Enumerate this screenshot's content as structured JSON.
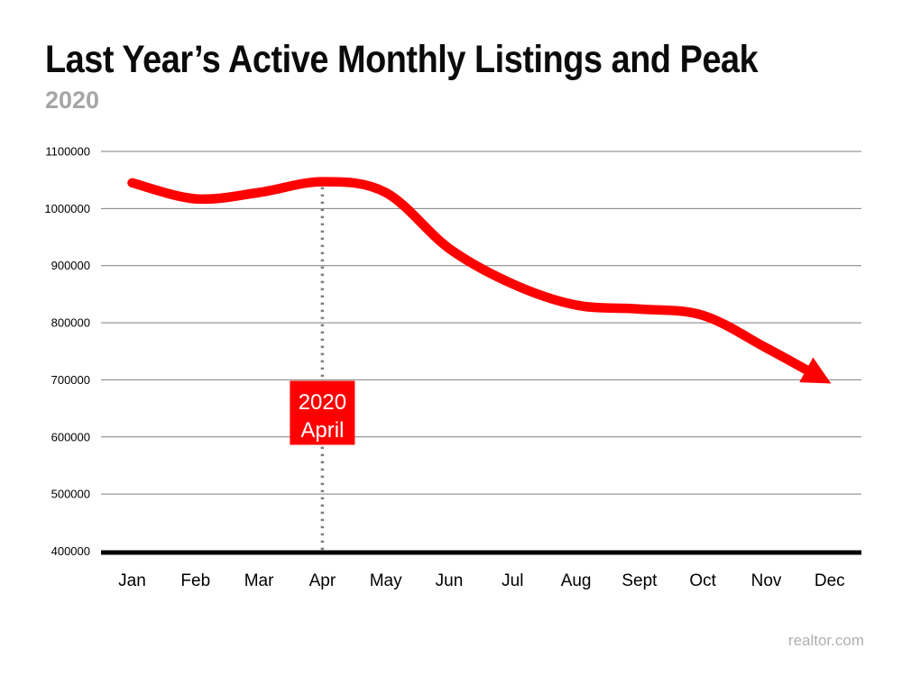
{
  "header": {
    "title": "Last Year’s Active Monthly Listings and Peak",
    "subtitle": "2020"
  },
  "watermark": "realtor.com",
  "chart_data": {
    "type": "line",
    "title": "Last Year’s Active Monthly Listings and Peak",
    "subtitle": "2020",
    "categories": [
      "Jan",
      "Feb",
      "Mar",
      "Apr",
      "May",
      "Jun",
      "Jul",
      "Aug",
      "Sept",
      "Oct",
      "Nov",
      "Dec"
    ],
    "series": [
      {
        "name": "Active Monthly Listings",
        "values": [
          1045000,
          1017000,
          1028000,
          1047000,
          1028000,
          930000,
          868000,
          831000,
          824000,
          813000,
          756000,
          695000
        ]
      }
    ],
    "ylim": [
      400000,
      1100000
    ],
    "ytick_step": 100000,
    "yticks": [
      "400000",
      "500000",
      "600000",
      "700000",
      "800000",
      "900000",
      "1000000",
      "1100000"
    ],
    "grid": true,
    "legend": "none",
    "peak": {
      "month": "Apr",
      "annotation_lines": [
        "2020",
        "April"
      ]
    },
    "colors": {
      "line": "#ff0000",
      "annotation_box": "#ff0000",
      "annotation_text": "#ffffff",
      "gridline": "#7f7f7f",
      "dotted_line": "#7f7f7f",
      "axis": "#000000",
      "tick_text": "#000000"
    }
  }
}
